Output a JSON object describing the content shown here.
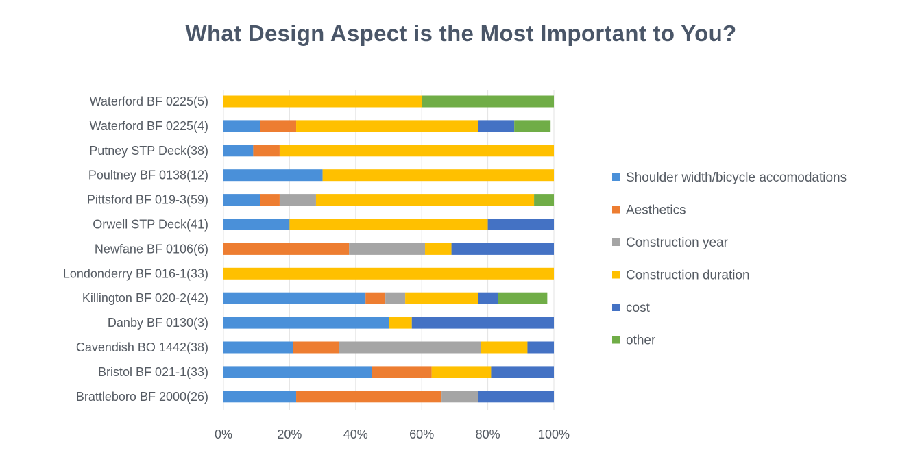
{
  "chart_data": {
    "type": "bar",
    "orientation": "horizontal",
    "stacked": "percent",
    "title": "What Design Aspect is the Most Important to You?",
    "xlabel": "",
    "ylabel": "",
    "xlim": [
      0,
      100
    ],
    "xticks": [
      "0%",
      "20%",
      "40%",
      "60%",
      "80%",
      "100%"
    ],
    "grid": true,
    "legend_position": "right",
    "categories": [
      "Waterford BF 0225(5)",
      "Waterford BF 0225(4)",
      "Putney STP Deck(38)",
      "Poultney BF 0138(12)",
      "Pittsford BF 019-3(59)",
      "Orwell STP Deck(41)",
      "Newfane BF 0106(6)",
      "Londonderry BF 016-1(33)",
      "Killington BF 020-2(42)",
      "Danby BF 0130(3)",
      "Cavendish BO 1442(38)",
      "Bristol BF 021-1(33)",
      "Brattleboro BF 2000(26)"
    ],
    "series": [
      {
        "name": "Shoulder width/bicycle accomodations",
        "color": "#4a90d9",
        "values": [
          0,
          11,
          9,
          30,
          11,
          20,
          0,
          0,
          43,
          50,
          21,
          45,
          22
        ]
      },
      {
        "name": "Aesthetics",
        "color": "#ed7d31",
        "values": [
          0,
          11,
          8,
          0,
          6,
          0,
          38,
          0,
          6,
          0,
          14,
          18,
          44
        ]
      },
      {
        "name": "Construction year",
        "color": "#a5a5a5",
        "values": [
          0,
          0,
          0,
          0,
          11,
          0,
          23,
          0,
          6,
          0,
          43,
          0,
          11
        ]
      },
      {
        "name": "Construction duration",
        "color": "#ffc000",
        "values": [
          60,
          55,
          83,
          70,
          66,
          60,
          8,
          100,
          22,
          7,
          14,
          18,
          0
        ]
      },
      {
        "name": "cost",
        "color": "#4472c4",
        "values": [
          0,
          11,
          0,
          0,
          0,
          20,
          31,
          0,
          6,
          43,
          8,
          19,
          23
        ]
      },
      {
        "name": "other",
        "color": "#70ad47",
        "values": [
          40,
          11,
          0,
          0,
          6,
          0,
          0,
          0,
          15,
          0,
          0,
          0,
          0
        ]
      }
    ]
  }
}
